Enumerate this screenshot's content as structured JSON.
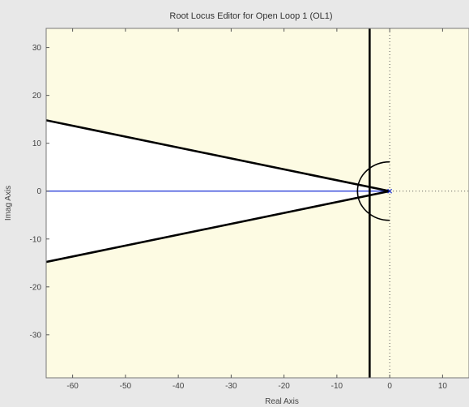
{
  "window": {
    "title": "Root Locus Editor for Open Loop 1 (OL1)"
  },
  "colors": {
    "background": "#fdfbe3",
    "stable_region": "#ffffff",
    "locus_line": "#1a2fd6",
    "constraint_line": "#000000",
    "frame": "#e8e8e8"
  },
  "chart_data": {
    "type": "line",
    "title": "Root Locus Editor for Open Loop 1 (OL1)",
    "xlabel": "Real Axis",
    "ylabel": "Imag Axis",
    "xlim": [
      -65,
      15
    ],
    "ylim": [
      -39,
      34
    ],
    "xticks": [
      -60,
      -50,
      -40,
      -30,
      -20,
      -10,
      0,
      10
    ],
    "xtick_labels": [
      "-60",
      "-50",
      "-40",
      "-30",
      "-20",
      "-10",
      "0",
      "10"
    ],
    "yticks": [
      30,
      20,
      10,
      0,
      -10,
      -20,
      -30
    ],
    "ytick_labels": [
      "30",
      "20",
      "10",
      "0",
      "-10",
      "-20",
      "-30"
    ],
    "grid": false,
    "series": [
      {
        "kind": "locus",
        "x": [
          -65,
          0
        ],
        "y": [
          0,
          0
        ]
      }
    ],
    "poles": [
      {
        "x": 0,
        "y": 0
      }
    ],
    "damping_wedge": {
      "apex": {
        "x": 0,
        "y": 0
      },
      "upper_edge": {
        "x": -65,
        "y": 14.8
      },
      "lower_edge": {
        "x": -65,
        "y": -14.8
      }
    },
    "settling_line": {
      "x": -3.8
    },
    "natural_frequency_arc": {
      "radius": 6.1
    },
    "reference_axes": {
      "dotted": true
    }
  }
}
